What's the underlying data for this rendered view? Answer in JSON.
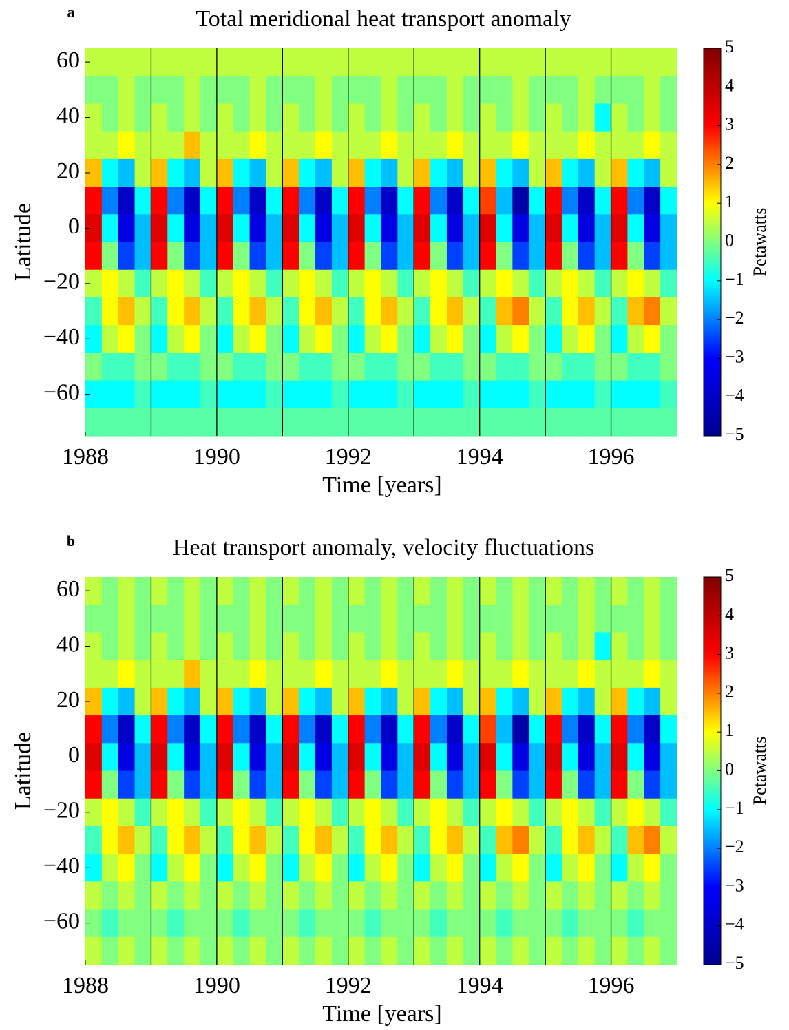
{
  "chart_data": [
    {
      "type": "heatmap",
      "panel_label": "a",
      "title": "Total meridional heat transport anomaly",
      "xlabel": "Time [years]",
      "ylabel": "Latitude",
      "colorbar_label": "Petawatts",
      "xlim": [
        1988,
        1997
      ],
      "xticks": [
        1988,
        1990,
        1992,
        1994,
        1996
      ],
      "ylim": [
        -75,
        65
      ],
      "yticks": [
        {
          "value": -60,
          "label": "−60"
        },
        {
          "value": -40,
          "label": "−40"
        },
        {
          "value": -20,
          "label": "−20"
        },
        0,
        20,
        40,
        60
      ],
      "zlim": [
        -5,
        5
      ],
      "zticks": [
        {
          "value": -5,
          "label": "−5"
        },
        {
          "value": -4,
          "label": "−4"
        },
        {
          "value": -3,
          "label": "−3"
        },
        {
          "value": -2,
          "label": "−2"
        },
        {
          "value": -1,
          "label": "−1"
        },
        0,
        1,
        2,
        3,
        4,
        5
      ],
      "colorscale": [
        "#00008f",
        "#0000ff",
        "#00ffff",
        "#ffff00",
        "#ff0000",
        "#800000"
      ],
      "vlines": [
        1989,
        1990,
        1991,
        1992,
        1993,
        1994,
        1995,
        1996
      ],
      "vline_color": "#000000",
      "x": [
        1988.125,
        1988.375,
        1988.625,
        1988.875,
        1989.125,
        1989.375,
        1989.625,
        1989.875,
        1990.125,
        1990.375,
        1990.625,
        1990.875,
        1991.125,
        1991.375,
        1991.625,
        1991.875,
        1992.125,
        1992.375,
        1992.625,
        1992.875,
        1993.125,
        1993.375,
        1993.625,
        1993.875,
        1994.125,
        1994.375,
        1994.625,
        1994.875,
        1995.125,
        1995.375,
        1995.625,
        1995.875,
        1996.125,
        1996.375,
        1996.625,
        1996.875
      ],
      "y": [
        60,
        50,
        40,
        30,
        20,
        10,
        0,
        -10,
        -20,
        -30,
        -40,
        -50,
        -60,
        -70
      ],
      "z": [
        [
          0.5,
          0.5,
          0.5,
          0.5,
          0.5,
          0.5,
          0.5,
          0.5,
          0.5,
          0.5,
          0.5,
          0.5,
          0.5,
          0.5,
          0.5,
          0.5,
          0.5,
          0.5,
          0.5,
          0.5,
          0.5,
          0.5,
          0.5,
          0.5,
          0.5,
          0.5,
          0.5,
          0.5,
          0.5,
          0.5,
          0.5,
          0.5,
          0.5,
          0.5,
          0.5,
          0.5
        ],
        [
          0,
          0,
          0.5,
          0,
          0,
          0,
          0.5,
          0,
          0,
          0,
          0.5,
          0,
          0,
          0,
          0.5,
          0,
          0,
          0,
          0.5,
          0,
          0,
          0,
          0.5,
          0,
          0,
          0,
          0.5,
          0,
          0,
          0,
          0.5,
          0,
          0,
          0,
          0.5,
          0
        ],
        [
          0.5,
          0,
          0.5,
          0,
          0.5,
          0,
          0.5,
          0,
          0.5,
          0,
          0.5,
          0,
          0.5,
          0,
          0.5,
          0,
          0.5,
          0,
          0.5,
          0,
          0.5,
          0,
          0.5,
          0,
          0.5,
          0,
          0.5,
          0,
          0.5,
          0,
          0.5,
          -1,
          0.5,
          0,
          0.5,
          0
        ],
        [
          0.5,
          0.5,
          1,
          0.5,
          0.5,
          0.5,
          1.5,
          0.5,
          0.5,
          0.5,
          1,
          0.5,
          0.5,
          0.5,
          1,
          0.5,
          0.5,
          0.5,
          1,
          0.5,
          0.5,
          0.5,
          1,
          0.5,
          0.5,
          0.5,
          1,
          0.5,
          0.5,
          0.5,
          1,
          0.5,
          0.5,
          0.5,
          1,
          0.5
        ],
        [
          1.5,
          -1,
          -1.5,
          0.5,
          1.5,
          -1,
          -1.5,
          0.5,
          1.5,
          -1,
          -1.5,
          0.5,
          1.5,
          -1,
          -1.5,
          0.5,
          1.5,
          -1,
          -1.5,
          0.5,
          1.5,
          -1,
          -1.5,
          0.5,
          1.5,
          -1,
          -1.5,
          0.5,
          1.5,
          -1,
          -1.5,
          0.5,
          1.5,
          -1,
          -1.5,
          0.5
        ],
        [
          3,
          -2,
          -4,
          -1,
          3,
          -2,
          -4,
          -1,
          3,
          -2,
          -4,
          -1,
          3,
          -2,
          -4,
          -1,
          3,
          -2,
          -4,
          -1,
          3,
          -2,
          -4,
          -1,
          2.5,
          -1.5,
          -4.5,
          -1,
          3,
          -2,
          -4,
          -1,
          3,
          -2,
          -4,
          -1
        ],
        [
          3.5,
          -1,
          -3.5,
          -1.5,
          3.5,
          -1,
          -3.5,
          -1.5,
          3.5,
          -1,
          -3.5,
          -1.5,
          3.5,
          -1,
          -3.5,
          -1.5,
          3.5,
          -1,
          -3.5,
          -1.5,
          3.5,
          -1,
          -3.5,
          -1.5,
          3.5,
          -1,
          -3.5,
          -1.5,
          3.5,
          -1,
          -3.5,
          -1.5,
          3.5,
          -1,
          -3.5,
          -1.5
        ],
        [
          3,
          0,
          -2.5,
          -1.5,
          3,
          0,
          -2.5,
          -1.5,
          3,
          0,
          -2.5,
          -1.5,
          3,
          0,
          -2.5,
          -1.5,
          3,
          0,
          -2.5,
          -1.5,
          3,
          0,
          -2.5,
          -1.5,
          3,
          0,
          -2.5,
          -1.5,
          3,
          0,
          -2.5,
          -1.5,
          3,
          0,
          -2.5,
          -1.5
        ],
        [
          0.5,
          1,
          0.5,
          -0.5,
          0.5,
          1,
          0.5,
          -0.5,
          0.5,
          1,
          0.5,
          -0.5,
          0.5,
          1,
          0.5,
          -0.5,
          0.5,
          1,
          0.5,
          -0.5,
          0.5,
          1,
          0.5,
          -0.5,
          0.5,
          1,
          0.5,
          -0.5,
          0.5,
          1,
          0.5,
          -0.5,
          0.5,
          1,
          0.5,
          -0.5
        ],
        [
          -0.5,
          1,
          1.5,
          0.5,
          -0.5,
          1,
          1.5,
          0.5,
          -0.5,
          1,
          1.5,
          0.5,
          -0.5,
          1,
          1.5,
          0.5,
          -0.5,
          1,
          1.5,
          0.5,
          -0.5,
          1,
          1.5,
          0.5,
          -0.5,
          1.5,
          2,
          0.5,
          -0.5,
          1,
          1.5,
          0.5,
          -0.5,
          1.5,
          2,
          0.5
        ],
        [
          -1,
          0.5,
          1,
          0,
          -1,
          0.5,
          1,
          0,
          -1,
          0.5,
          1,
          0,
          -1,
          0.5,
          1,
          0,
          -1,
          0.5,
          1,
          0,
          -1,
          0.5,
          1,
          0,
          -1,
          0.5,
          1,
          0,
          -1,
          0.5,
          1,
          0,
          -1,
          0.5,
          1,
          0
        ],
        [
          0,
          -0.5,
          -0.5,
          0,
          0,
          -0.5,
          -0.5,
          0,
          0,
          -0.5,
          -0.5,
          0,
          0,
          -0.5,
          -0.5,
          0,
          0,
          -0.5,
          -0.5,
          0,
          0,
          -0.5,
          -0.5,
          0,
          0,
          -0.5,
          -0.5,
          0,
          0,
          -0.5,
          -0.5,
          0,
          0,
          -0.5,
          -0.5,
          0
        ],
        [
          -1,
          -1,
          -1,
          -0.5,
          -1,
          -1,
          -1,
          -0.5,
          -1,
          -1,
          -1,
          -0.5,
          -1,
          -1,
          -1,
          -0.5,
          -1,
          -1,
          -1,
          -0.5,
          -1,
          -1,
          -1,
          -0.5,
          -1,
          -1,
          -1,
          -0.5,
          -1,
          -1,
          -1,
          -0.5,
          -1,
          -1,
          -1,
          -0.5
        ],
        [
          -0.3,
          -0.3,
          -0.3,
          -0.3,
          -0.3,
          -0.3,
          -0.3,
          -0.3,
          -0.3,
          -0.3,
          -0.3,
          -0.3,
          -0.3,
          -0.3,
          -0.3,
          -0.3,
          -0.3,
          -0.3,
          -0.3,
          -0.3,
          -0.3,
          -0.3,
          -0.3,
          -0.3,
          -0.3,
          -0.3,
          -0.3,
          -0.3,
          -0.3,
          -0.3,
          -0.3,
          -0.3,
          -0.3,
          -0.3,
          -0.3,
          -0.3
        ]
      ]
    },
    {
      "type": "heatmap",
      "panel_label": "b",
      "title": "Heat transport anomaly, velocity fluctuations",
      "xlabel": "Time [years]",
      "ylabel": "Latitude",
      "colorbar_label": "Petawatts",
      "xlim": [
        1988,
        1997
      ],
      "xticks": [
        1988,
        1990,
        1992,
        1994,
        1996
      ],
      "ylim": [
        -75,
        65
      ],
      "yticks": [
        {
          "value": -60,
          "label": "−60"
        },
        {
          "value": -40,
          "label": "−40"
        },
        {
          "value": -20,
          "label": "−20"
        },
        0,
        20,
        40,
        60
      ],
      "zlim": [
        -5,
        5
      ],
      "zticks": [
        {
          "value": -5,
          "label": "−5"
        },
        {
          "value": -4,
          "label": "−4"
        },
        {
          "value": -3,
          "label": "−3"
        },
        {
          "value": -2,
          "label": "−2"
        },
        {
          "value": -1,
          "label": "−1"
        },
        0,
        1,
        2,
        3,
        4,
        5
      ],
      "colorscale": [
        "#00008f",
        "#0000ff",
        "#00ffff",
        "#ffff00",
        "#ff0000",
        "#800000"
      ],
      "vlines": [
        1989,
        1990,
        1991,
        1992,
        1993,
        1994,
        1995,
        1996
      ],
      "vline_color": "#000000",
      "x": [
        1988.125,
        1988.375,
        1988.625,
        1988.875,
        1989.125,
        1989.375,
        1989.625,
        1989.875,
        1990.125,
        1990.375,
        1990.625,
        1990.875,
        1991.125,
        1991.375,
        1991.625,
        1991.875,
        1992.125,
        1992.375,
        1992.625,
        1992.875,
        1993.125,
        1993.375,
        1993.625,
        1993.875,
        1994.125,
        1994.375,
        1994.625,
        1994.875,
        1995.125,
        1995.375,
        1995.625,
        1995.875,
        1996.125,
        1996.375,
        1996.625,
        1996.875
      ],
      "y": [
        60,
        50,
        40,
        30,
        20,
        10,
        0,
        -10,
        -20,
        -30,
        -40,
        -50,
        -60,
        -70
      ],
      "z": [
        [
          0.5,
          0,
          0.5,
          0,
          0.5,
          0,
          0.5,
          0,
          0.5,
          0,
          0.5,
          0,
          0.5,
          0,
          0.5,
          0,
          0.5,
          0,
          0.5,
          0,
          0.5,
          0,
          0.5,
          0,
          0.5,
          0,
          0.5,
          0,
          0.5,
          0,
          0.5,
          0,
          0.5,
          0,
          0.5,
          0
        ],
        [
          0,
          0,
          0.5,
          0,
          0,
          0,
          0.5,
          0,
          0,
          0,
          0.5,
          0,
          0,
          0,
          0.5,
          0,
          0,
          0,
          0.5,
          0,
          0,
          0,
          0.5,
          0,
          0,
          0,
          0.5,
          0,
          0,
          0,
          0.5,
          0,
          0,
          0,
          0.5,
          0
        ],
        [
          0.5,
          0,
          0.5,
          0,
          0.5,
          0,
          0.5,
          0,
          0.5,
          0,
          0.5,
          0,
          0.5,
          0,
          0.5,
          0,
          0.5,
          0,
          0.5,
          0,
          0.5,
          0,
          0.5,
          0,
          0.5,
          0,
          0.5,
          0,
          0.5,
          0,
          0.5,
          -1,
          0.5,
          0,
          0.5,
          0
        ],
        [
          0.5,
          0.5,
          1,
          0.5,
          0.5,
          0.5,
          1.5,
          0.5,
          0.5,
          0.5,
          1,
          0.5,
          0.5,
          0.5,
          1,
          0.5,
          0.5,
          0.5,
          1,
          0.5,
          0.5,
          0.5,
          1,
          0.5,
          0.5,
          0.5,
          1,
          0.5,
          0.5,
          0.5,
          1,
          0.5,
          0.5,
          0.5,
          1,
          0.5
        ],
        [
          1.5,
          -1,
          -1.5,
          0.5,
          1.5,
          -1,
          -1.5,
          0.5,
          1.5,
          -1,
          -1.5,
          0.5,
          1.5,
          -1,
          -1.5,
          0.5,
          1.5,
          -1,
          -1.5,
          0.5,
          1.5,
          -1,
          -1.5,
          0.5,
          1.5,
          -1,
          -1.5,
          0.5,
          1.5,
          -1,
          -1.5,
          0.5,
          1.5,
          -1,
          -1.5,
          0.5
        ],
        [
          3,
          -2,
          -4,
          -1,
          3,
          -2,
          -4,
          -1,
          3,
          -2,
          -4,
          -1,
          3,
          -2,
          -4,
          -1,
          3,
          -2,
          -4,
          -1,
          3,
          -2,
          -4,
          -1,
          2.5,
          -1.5,
          -4.5,
          -1,
          3,
          -2,
          -4,
          -1,
          3,
          -2,
          -4,
          -1
        ],
        [
          3.5,
          -1,
          -3.5,
          -1.5,
          3.5,
          -1,
          -3.5,
          -1.5,
          3.5,
          -1,
          -3.5,
          -1.5,
          3.5,
          -1,
          -3.5,
          -1.5,
          3.5,
          -1,
          -3.5,
          -1.5,
          3.5,
          -1,
          -3.5,
          -1.5,
          3.5,
          -1,
          -3.5,
          -1.5,
          3.5,
          -1,
          -3.5,
          -1.5,
          3.5,
          -1,
          -3.5,
          -1.5
        ],
        [
          3,
          0,
          -2.5,
          -1.5,
          3,
          0,
          -2.5,
          -1.5,
          3,
          0,
          -2.5,
          -1.5,
          3,
          0,
          -2.5,
          -1.5,
          3,
          0,
          -2.5,
          -1.5,
          3,
          0,
          -2.5,
          -1.5,
          3,
          0,
          -2.5,
          -1.5,
          3,
          0,
          -2.5,
          -1.5,
          3,
          0,
          -2.5,
          -1.5
        ],
        [
          0.5,
          1,
          0.5,
          -0.5,
          0.5,
          1,
          0.5,
          -0.5,
          0.5,
          1,
          0.5,
          -0.5,
          0.5,
          1,
          0.5,
          -0.5,
          0.5,
          1,
          0.5,
          -0.5,
          0.5,
          1,
          0.5,
          -0.5,
          0.5,
          1,
          0.5,
          -0.5,
          0.5,
          1,
          0.5,
          -0.5,
          0.5,
          1,
          0.5,
          -0.5
        ],
        [
          -0.5,
          1,
          1.5,
          0.5,
          -0.5,
          1,
          1.5,
          0.5,
          -0.5,
          1,
          1.5,
          0.5,
          -0.5,
          1,
          1.5,
          0.5,
          -0.5,
          1,
          1.5,
          0.5,
          -0.5,
          1,
          1.5,
          0.5,
          -0.5,
          1.5,
          2,
          0.5,
          -0.5,
          1,
          1.5,
          0.5,
          -0.5,
          1.5,
          2,
          0.5
        ],
        [
          -1,
          0.5,
          1,
          0,
          -1,
          0.5,
          1,
          0,
          -1,
          0.5,
          1,
          0,
          -1,
          0.5,
          1,
          0,
          -1,
          0.5,
          1,
          0,
          -1,
          0.5,
          1,
          0,
          -1,
          0.5,
          1,
          0,
          -1,
          0.5,
          1,
          0,
          -1,
          0.5,
          1,
          0
        ],
        [
          0.5,
          0,
          0.5,
          0,
          0.5,
          0,
          0.5,
          0,
          0.5,
          0,
          0.5,
          0,
          0.5,
          0,
          0.5,
          0,
          0.5,
          0,
          0.5,
          0,
          0.5,
          0,
          0.5,
          0,
          0.5,
          0,
          0.5,
          0,
          0.5,
          0,
          0.5,
          0,
          0.5,
          0,
          0.5,
          0
        ],
        [
          0,
          -0.5,
          0,
          0,
          0,
          -0.5,
          0,
          0,
          0,
          -0.5,
          0,
          0,
          0,
          -0.5,
          0,
          0,
          0,
          -0.5,
          0,
          0,
          0,
          -0.5,
          0,
          0,
          0,
          -0.5,
          0,
          0,
          0,
          -0.5,
          0,
          0,
          0,
          -0.5,
          0,
          0
        ],
        [
          0.5,
          0,
          0.5,
          0,
          0.5,
          0,
          0.5,
          0,
          0.5,
          0,
          0.5,
          0,
          0.5,
          0,
          0.5,
          0,
          0.5,
          0,
          0.5,
          0,
          0.5,
          0,
          0.5,
          0,
          0.5,
          0,
          0.5,
          0,
          0.5,
          0,
          0.5,
          0,
          0.5,
          0,
          0.5,
          0
        ]
      ]
    }
  ]
}
